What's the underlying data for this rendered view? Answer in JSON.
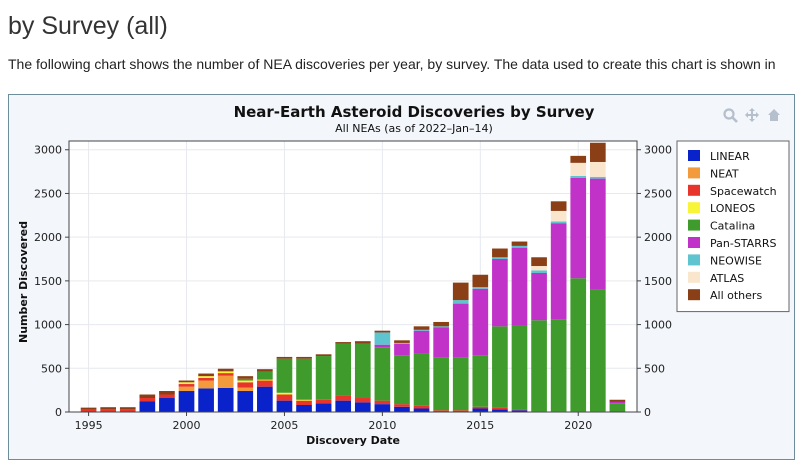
{
  "page": {
    "heading": "by Survey (all)",
    "intro": "The following chart shows the number of NEA discoveries per year, by survey. The data used to create this chart is shown in"
  },
  "toolbar": {
    "zoom_icon": "magnifier-icon",
    "pan_icon": "pan-move-icon",
    "home_icon": "home-icon"
  },
  "chart_data": {
    "type": "bar",
    "stacked": true,
    "title": "Near-Earth Asteroid Discoveries by Survey",
    "subtitle": "All NEAs (as of 2022–Jan–14)",
    "xlabel": "Discovery Date",
    "ylabel": "Number Discovered",
    "xlim": [
      1994,
      2023
    ],
    "ylim": [
      0,
      3100
    ],
    "xticks": [
      1995,
      2000,
      2005,
      2010,
      2015,
      2020
    ],
    "yticks": [
      0,
      500,
      1000,
      1500,
      2000,
      2500,
      3000
    ],
    "grid": true,
    "legend_position": "top-right",
    "x": [
      1995,
      1996,
      1997,
      1998,
      1999,
      2000,
      2001,
      2002,
      2003,
      2004,
      2005,
      2006,
      2007,
      2008,
      2009,
      2010,
      2011,
      2012,
      2013,
      2014,
      2015,
      2016,
      2017,
      2018,
      2019,
      2020,
      2021,
      2022
    ],
    "series": [
      {
        "name": "LINEAR",
        "color": "#0a22c9",
        "values": [
          0,
          0,
          0,
          120,
          160,
          240,
          270,
          275,
          240,
          290,
          130,
          80,
          100,
          130,
          110,
          90,
          60,
          40,
          0,
          0,
          40,
          30,
          20,
          0,
          0,
          0,
          0,
          0
        ]
      },
      {
        "name": "NEAT",
        "color": "#f39a3c",
        "values": [
          0,
          0,
          0,
          0,
          0,
          50,
          90,
          140,
          40,
          0,
          0,
          0,
          0,
          0,
          0,
          0,
          0,
          0,
          0,
          0,
          0,
          0,
          0,
          0,
          0,
          0,
          0,
          0
        ]
      },
      {
        "name": "Spacewatch",
        "color": "#e8352c",
        "values": [
          25,
          30,
          30,
          40,
          40,
          30,
          30,
          30,
          60,
          70,
          70,
          50,
          40,
          60,
          50,
          40,
          30,
          30,
          20,
          20,
          20,
          20,
          10,
          10,
          10,
          10,
          10,
          0
        ]
      },
      {
        "name": "LONEOS",
        "color": "#f8f438",
        "values": [
          0,
          0,
          0,
          0,
          0,
          20,
          20,
          20,
          20,
          10,
          20,
          10,
          0,
          0,
          0,
          0,
          0,
          0,
          0,
          0,
          0,
          0,
          0,
          0,
          0,
          0,
          0,
          0
        ]
      },
      {
        "name": "Catalina",
        "color": "#3f9b2b",
        "values": [
          0,
          0,
          0,
          0,
          0,
          0,
          0,
          0,
          20,
          90,
          390,
          470,
          500,
          590,
          620,
          610,
          560,
          600,
          600,
          600,
          590,
          930,
          960,
          1040,
          1050,
          1520,
          1390,
          95
        ]
      },
      {
        "name": "Pan-STARRS",
        "color": "#c032c8",
        "values": [
          0,
          0,
          0,
          0,
          0,
          0,
          0,
          0,
          0,
          0,
          0,
          0,
          0,
          0,
          0,
          30,
          130,
          260,
          350,
          620,
          760,
          770,
          890,
          540,
          1100,
          1150,
          1270,
          20
        ]
      },
      {
        "name": "NEOWISE",
        "color": "#5ec4cf",
        "values": [
          0,
          0,
          0,
          0,
          0,
          0,
          0,
          0,
          0,
          0,
          0,
          0,
          0,
          0,
          0,
          140,
          10,
          10,
          10,
          40,
          20,
          20,
          20,
          30,
          20,
          20,
          20,
          0
        ]
      },
      {
        "name": "ATLAS",
        "color": "#fae6cc",
        "values": [
          0,
          0,
          0,
          0,
          0,
          0,
          0,
          0,
          0,
          0,
          0,
          0,
          0,
          0,
          0,
          0,
          0,
          0,
          0,
          0,
          0,
          0,
          0,
          50,
          120,
          150,
          170,
          0
        ]
      },
      {
        "name": "All others",
        "color": "#8b3f17",
        "values": [
          25,
          25,
          25,
          40,
          40,
          20,
          30,
          30,
          30,
          30,
          20,
          20,
          20,
          20,
          30,
          20,
          30,
          40,
          50,
          200,
          140,
          100,
          50,
          100,
          110,
          80,
          220,
          25
        ]
      }
    ]
  }
}
